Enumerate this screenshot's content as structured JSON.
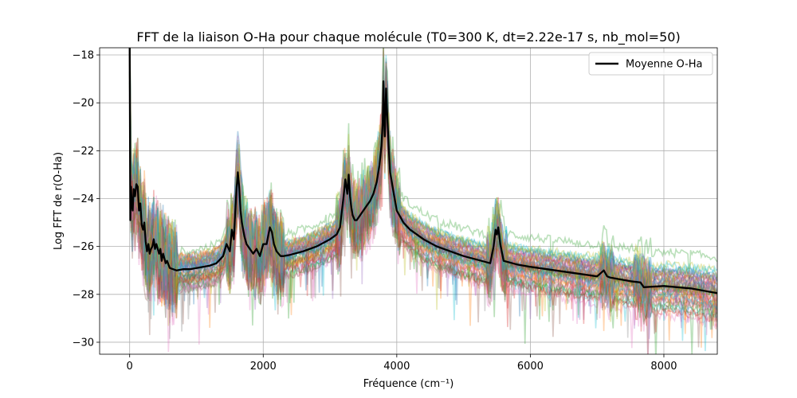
{
  "chart_data": {
    "type": "line",
    "title": "FFT de la liaison O-Ha pour chaque molécule (T0=300 K, dt=2.22e-17 s, nb_mol=50)",
    "xlabel": "Fréquence (cm⁻¹)",
    "ylabel": "Log FFT de r(O-Ha)",
    "xlim": [
      -450,
      8800
    ],
    "ylim": [
      -30.5,
      -17.7
    ],
    "x_ticks": [
      0,
      2000,
      4000,
      6000,
      8000
    ],
    "x_tick_labels": [
      "0",
      "2000",
      "4000",
      "6000",
      "8000"
    ],
    "y_ticks": [
      -30,
      -28,
      -26,
      -24,
      -22,
      -20,
      -18
    ],
    "y_tick_labels": [
      "−30",
      "−28",
      "−26",
      "−24",
      "−22",
      "−20",
      "−18"
    ],
    "grid": true,
    "legend": {
      "position": "top-right",
      "entries": [
        "Moyenne O-Ha"
      ]
    },
    "mean_series": {
      "name": "Moyenne O-Ha",
      "color": "#000000",
      "x": [
        0,
        10,
        20,
        30,
        45,
        60,
        80,
        100,
        120,
        140,
        160,
        180,
        200,
        220,
        240,
        260,
        280,
        300,
        320,
        340,
        360,
        380,
        400,
        420,
        440,
        460,
        480,
        500,
        520,
        540,
        560,
        600,
        700,
        800,
        900,
        1000,
        1100,
        1200,
        1300,
        1400,
        1450,
        1500,
        1530,
        1560,
        1580,
        1600,
        1620,
        1640,
        1660,
        1680,
        1700,
        1720,
        1750,
        1800,
        1850,
        1900,
        1950,
        2000,
        2050,
        2100,
        2130,
        2160,
        2200,
        2230,
        2260,
        2300,
        2400,
        2600,
        2800,
        3000,
        3100,
        3150,
        3200,
        3230,
        3260,
        3280,
        3300,
        3320,
        3340,
        3370,
        3400,
        3450,
        3500,
        3550,
        3600,
        3650,
        3700,
        3740,
        3770,
        3790,
        3800,
        3810,
        3820,
        3840,
        3860,
        3880,
        3900,
        3950,
        4000,
        4100,
        4200,
        4400,
        4600,
        4800,
        5000,
        5200,
        5400,
        5450,
        5480,
        5500,
        5520,
        5550,
        5600,
        5800,
        6000,
        6500,
        7000,
        7100,
        7150,
        7200,
        7500,
        7650,
        7700,
        8000,
        8400,
        8800
      ],
      "y": [
        -17.6,
        -24.9,
        -23.5,
        -24.2,
        -24.5,
        -23.6,
        -23.9,
        -23.4,
        -23.5,
        -24.5,
        -24.2,
        -25.1,
        -25.3,
        -25.0,
        -25.8,
        -26.2,
        -25.9,
        -26.3,
        -26.1,
        -26.0,
        -25.7,
        -26.1,
        -25.9,
        -26.1,
        -26.3,
        -26.1,
        -26.6,
        -26.3,
        -26.5,
        -26.7,
        -26.6,
        -26.9,
        -27.0,
        -26.95,
        -26.95,
        -26.9,
        -26.85,
        -26.8,
        -26.7,
        -26.4,
        -25.9,
        -26.2,
        -25.3,
        -25.7,
        -24.6,
        -23.6,
        -22.9,
        -23.5,
        -24.5,
        -25.0,
        -25.3,
        -25.6,
        -25.9,
        -26.1,
        -26.3,
        -26.1,
        -26.4,
        -25.9,
        -25.9,
        -25.2,
        -25.4,
        -25.9,
        -26.2,
        -26.3,
        -26.4,
        -26.4,
        -26.35,
        -26.2,
        -26.0,
        -25.7,
        -25.5,
        -25.2,
        -24.0,
        -23.2,
        -23.8,
        -23.0,
        -23.9,
        -24.4,
        -24.7,
        -24.9,
        -24.9,
        -24.7,
        -24.5,
        -24.3,
        -24.1,
        -23.8,
        -23.3,
        -22.6,
        -21.8,
        -20.8,
        -19.1,
        -20.6,
        -21.4,
        -19.4,
        -20.7,
        -21.9,
        -22.9,
        -23.7,
        -24.5,
        -25.0,
        -25.3,
        -25.7,
        -26.0,
        -26.2,
        -26.4,
        -26.55,
        -26.7,
        -26.0,
        -25.3,
        -25.5,
        -25.2,
        -25.9,
        -26.6,
        -26.75,
        -26.85,
        -27.05,
        -27.25,
        -27.0,
        -27.25,
        -27.3,
        -27.45,
        -27.5,
        -27.7,
        -27.65,
        -27.75,
        -27.95
      ]
    }
  }
}
